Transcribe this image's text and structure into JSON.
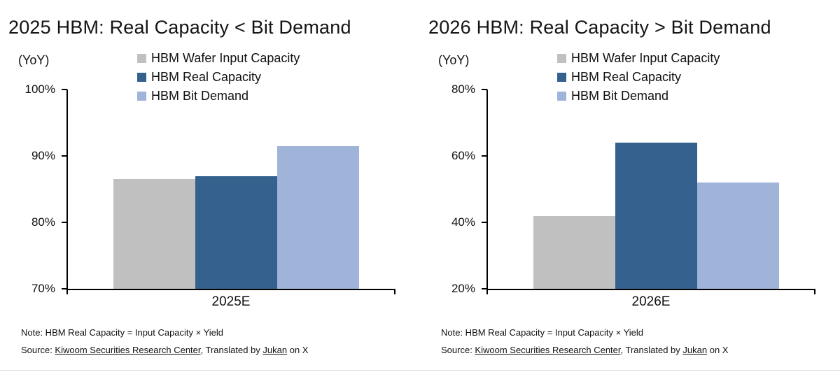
{
  "colors": {
    "gray": "#c0c0c0",
    "dark_blue": "#35618f",
    "light_blue": "#9fb4d8",
    "axis": "#000000",
    "text": "#141414"
  },
  "chart_data": [
    {
      "type": "bar",
      "title": "2025 HBM: Real Capacity < Bit Demand",
      "ylabel": "(YoY)",
      "categories": [
        "2025E"
      ],
      "series": [
        {
          "name": "HBM Wafer Input Capacity",
          "values": [
            86.5
          ],
          "color": "#c0c0c0"
        },
        {
          "name": "HBM Real Capacity",
          "values": [
            87.0
          ],
          "color": "#35618f"
        },
        {
          "name": "HBM Bit Demand",
          "values": [
            91.5
          ],
          "color": "#9fb4d8"
        }
      ],
      "ylim": [
        70,
        100
      ],
      "yticks": [
        100,
        90,
        80,
        70
      ],
      "ytick_labels": [
        "100%",
        "90%",
        "80%",
        "70%"
      ],
      "legend_position": "top",
      "grid": false,
      "note": "Note: HBM Real Capacity = Input Capacity × Yield",
      "source_parts": [
        {
          "text": "Source: ",
          "underline": false
        },
        {
          "text": "Kiwoom Securities Research Center",
          "underline": true
        },
        {
          "text": ", Translated by ",
          "underline": false
        },
        {
          "text": "Jukan",
          "underline": true
        },
        {
          "text": " on X",
          "underline": false
        }
      ]
    },
    {
      "type": "bar",
      "title": "2026 HBM: Real Capacity > Bit Demand",
      "ylabel": "(YoY)",
      "categories": [
        "2026E"
      ],
      "series": [
        {
          "name": "HBM Wafer Input Capacity",
          "values": [
            42.0
          ],
          "color": "#c0c0c0"
        },
        {
          "name": "HBM Real Capacity",
          "values": [
            64.0
          ],
          "color": "#35618f"
        },
        {
          "name": "HBM Bit Demand",
          "values": [
            52.0
          ],
          "color": "#9fb4d8"
        }
      ],
      "ylim": [
        20,
        80
      ],
      "yticks": [
        80,
        60,
        40,
        20
      ],
      "ytick_labels": [
        "80%",
        "60%",
        "40%",
        "20%"
      ],
      "legend_position": "top",
      "grid": false,
      "note": "Note: HBM Real Capacity = Input Capacity × Yield",
      "source_parts": [
        {
          "text": "Source: ",
          "underline": false
        },
        {
          "text": "Kiwoom Securities Research Center",
          "underline": true
        },
        {
          "text": ", Translated by ",
          "underline": false
        },
        {
          "text": "Jukan",
          "underline": true
        },
        {
          "text": " on X",
          "underline": false
        }
      ]
    }
  ]
}
